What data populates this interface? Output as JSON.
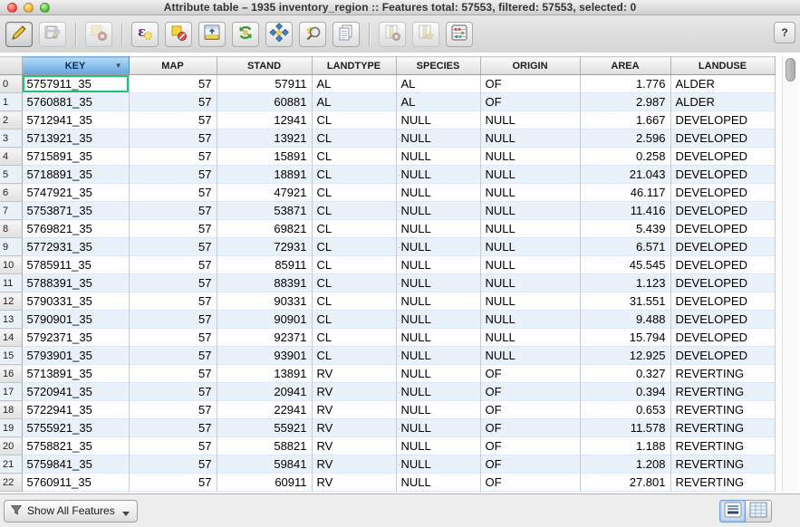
{
  "window": {
    "title": "Attribute table – 1935 inventory_region :: Features total: 57553, filtered: 57553, selected: 0"
  },
  "toolbar": {
    "help_label": "?",
    "groups": [
      [
        {
          "id": "toggle-editing-mode",
          "icon": "pencil-icon",
          "enabled": true,
          "active": true
        },
        {
          "id": "save-edits",
          "icon": "save-icon",
          "enabled": false
        }
      ],
      [
        {
          "id": "delete-selected-features",
          "icon": "delete-selected-icon",
          "enabled": false
        }
      ],
      [
        {
          "id": "select-by-expression",
          "icon": "epsilon-icon",
          "enabled": true
        },
        {
          "id": "deselect-all",
          "icon": "deselect-icon",
          "enabled": true
        },
        {
          "id": "move-selection-to-top",
          "icon": "move-selection-top-icon",
          "enabled": true
        },
        {
          "id": "invert-selection",
          "icon": "invert-selection-icon",
          "enabled": true
        },
        {
          "id": "pan-map-to-selected",
          "icon": "pan-selected-icon",
          "enabled": true
        },
        {
          "id": "zoom-map-to-selected",
          "icon": "zoom-selected-icon",
          "enabled": true
        },
        {
          "id": "copy-selected-rows",
          "icon": "copy-icon",
          "enabled": true
        }
      ],
      [
        {
          "id": "delete-column",
          "icon": "delete-column-icon",
          "enabled": false
        },
        {
          "id": "new-column",
          "icon": "new-column-icon",
          "enabled": false
        },
        {
          "id": "open-field-calculator",
          "icon": "field-calculator-icon",
          "enabled": true
        }
      ]
    ]
  },
  "table": {
    "columns": [
      "KEY",
      "MAP",
      "STAND",
      "LANDTYPE",
      "SPECIES",
      "ORIGIN",
      "AREA",
      "LANDUSE"
    ],
    "sorted_column": "KEY",
    "sort_indicator": "▼",
    "selected_cell": {
      "row": 0,
      "column": "KEY"
    },
    "rows": [
      [
        "0",
        "5757911_35",
        "57",
        "57911",
        "AL",
        "AL",
        "OF",
        "1.776",
        "ALDER"
      ],
      [
        "1",
        "5760881_35",
        "57",
        "60881",
        "AL",
        "AL",
        "OF",
        "2.987",
        "ALDER"
      ],
      [
        "2",
        "5712941_35",
        "57",
        "12941",
        "CL",
        "NULL",
        "NULL",
        "1.667",
        "DEVELOPED"
      ],
      [
        "3",
        "5713921_35",
        "57",
        "13921",
        "CL",
        "NULL",
        "NULL",
        "2.596",
        "DEVELOPED"
      ],
      [
        "4",
        "5715891_35",
        "57",
        "15891",
        "CL",
        "NULL",
        "NULL",
        "0.258",
        "DEVELOPED"
      ],
      [
        "5",
        "5718891_35",
        "57",
        "18891",
        "CL",
        "NULL",
        "NULL",
        "21.043",
        "DEVELOPED"
      ],
      [
        "6",
        "5747921_35",
        "57",
        "47921",
        "CL",
        "NULL",
        "NULL",
        "46.117",
        "DEVELOPED"
      ],
      [
        "7",
        "5753871_35",
        "57",
        "53871",
        "CL",
        "NULL",
        "NULL",
        "11.416",
        "DEVELOPED"
      ],
      [
        "8",
        "5769821_35",
        "57",
        "69821",
        "CL",
        "NULL",
        "NULL",
        "5.439",
        "DEVELOPED"
      ],
      [
        "9",
        "5772931_35",
        "57",
        "72931",
        "CL",
        "NULL",
        "NULL",
        "6.571",
        "DEVELOPED"
      ],
      [
        "10",
        "5785911_35",
        "57",
        "85911",
        "CL",
        "NULL",
        "NULL",
        "45.545",
        "DEVELOPED"
      ],
      [
        "11",
        "5788391_35",
        "57",
        "88391",
        "CL",
        "NULL",
        "NULL",
        "1.123",
        "DEVELOPED"
      ],
      [
        "12",
        "5790331_35",
        "57",
        "90331",
        "CL",
        "NULL",
        "NULL",
        "31.551",
        "DEVELOPED"
      ],
      [
        "13",
        "5790901_35",
        "57",
        "90901",
        "CL",
        "NULL",
        "NULL",
        "9.488",
        "DEVELOPED"
      ],
      [
        "14",
        "5792371_35",
        "57",
        "92371",
        "CL",
        "NULL",
        "NULL",
        "15.794",
        "DEVELOPED"
      ],
      [
        "15",
        "5793901_35",
        "57",
        "93901",
        "CL",
        "NULL",
        "NULL",
        "12.925",
        "DEVELOPED"
      ],
      [
        "16",
        "5713891_35",
        "57",
        "13891",
        "RV",
        "NULL",
        "OF",
        "0.327",
        "REVERTING"
      ],
      [
        "17",
        "5720941_35",
        "57",
        "20941",
        "RV",
        "NULL",
        "OF",
        "0.394",
        "REVERTING"
      ],
      [
        "18",
        "5722941_35",
        "57",
        "22941",
        "RV",
        "NULL",
        "OF",
        "0.653",
        "REVERTING"
      ],
      [
        "19",
        "5755921_35",
        "57",
        "55921",
        "RV",
        "NULL",
        "OF",
        "11.578",
        "REVERTING"
      ],
      [
        "20",
        "5758821_35",
        "57",
        "58821",
        "RV",
        "NULL",
        "OF",
        "1.188",
        "REVERTING"
      ],
      [
        "21",
        "5759841_35",
        "57",
        "59841",
        "RV",
        "NULL",
        "OF",
        "1.208",
        "REVERTING"
      ],
      [
        "22",
        "5760911_35",
        "57",
        "60911",
        "RV",
        "NULL",
        "OF",
        "27.801",
        "REVERTING"
      ]
    ]
  },
  "footer": {
    "filter_button_label": "Show All Features",
    "view_buttons": [
      {
        "id": "table-view",
        "selected": true
      },
      {
        "id": "form-view",
        "selected": false
      }
    ]
  },
  "colors": {
    "selected_cell_border": "#1dc577",
    "sorted_header_blue": "#8ec3ef",
    "row_stripe": "#e9f1fb"
  }
}
